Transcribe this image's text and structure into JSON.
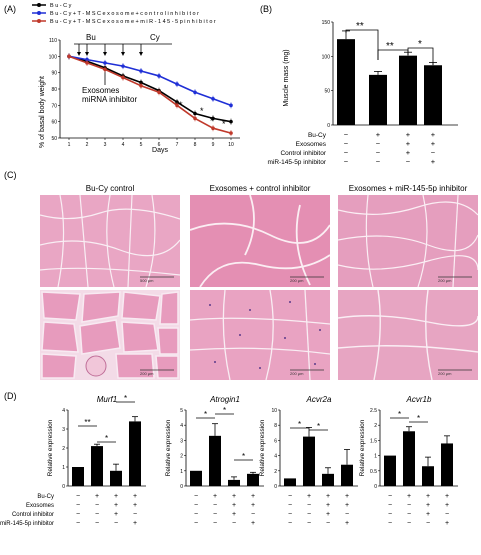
{
  "panels": {
    "A": {
      "label": "(A)",
      "legend": [
        {
          "name": "B u - C y",
          "color": "#000000"
        },
        {
          "name": "B u - C y + T - M S C  e x o s o m e + c o n t r o l  i n h i b i t o r",
          "color": "#1f2fd6"
        },
        {
          "name": "B u - C y + T - M S C  e x o s o m e + m i R - 1 4 5 - 5 p  i n h i b i t o r",
          "color": "#c0392b"
        }
      ],
      "bu_label": "Bu",
      "cy_label": "Cy",
      "exo_annotation_line1": "Exosomes",
      "exo_annotation_line2": "miRNA inhibitor",
      "ylabel": "% of basal body weight",
      "xlabel": "Days",
      "star": "*"
    },
    "B": {
      "label": "(B)",
      "ylabel": "Muscle mass (mg)",
      "sig1": "**",
      "sig2": "**",
      "sig3": "*"
    },
    "C": {
      "label": "(C)",
      "titles": [
        "Bu-Cy control",
        "Exosomes + control inhibitor",
        "Exosomes + miR-145-5p inhibitor"
      ],
      "scale_labels": [
        "500 μm",
        "200 μm",
        "200 μm",
        "200 μm",
        "200 μm",
        "200 μm"
      ]
    },
    "D": {
      "label": "(D)",
      "ylabel": "Relative expression",
      "genes": [
        "Murf1",
        "Atrogin1",
        "Acvr2a",
        "Acvr1b"
      ]
    }
  },
  "conditions": {
    "row_labels": [
      "Bu-Cy",
      "Exosomes",
      "Control inhibitor",
      "miR-145-5p inhibitor"
    ],
    "rows": [
      [
        "−",
        "+",
        "+",
        "+"
      ],
      [
        "−",
        "−",
        "+",
        "+"
      ],
      [
        "−",
        "−",
        "+",
        "−"
      ],
      [
        "−",
        "−",
        "−",
        "+"
      ]
    ]
  },
  "chart_data": [
    {
      "type": "line",
      "x": [
        1,
        2,
        3,
        4,
        5,
        6,
        7,
        8,
        9,
        10
      ],
      "xlim": [
        0.5,
        10.5
      ],
      "ylim": [
        50,
        110
      ],
      "yticks": [
        50,
        60,
        70,
        80,
        90,
        100,
        110
      ],
      "series": [
        {
          "name": "B u - C y",
          "color": "#000000",
          "values": [
            100,
            97,
            93,
            88,
            84,
            79,
            72,
            65,
            62,
            60
          ]
        },
        {
          "name": "B u - C y + T - M S C  e x o s o m e + c o n t r o l  i n h i b i t o r",
          "color": "#1f2fd6",
          "values": [
            100,
            98,
            96,
            94,
            91,
            88,
            83,
            78,
            74,
            70
          ]
        },
        {
          "name": "B u - C y + T - M S C  e x o s o m e + m i R - 1 4 5 - 5 p  i n h i b i t o r",
          "color": "#c0392b",
          "values": [
            100,
            96,
            92,
            87,
            82,
            78,
            70,
            62,
            56,
            53
          ]
        }
      ]
    },
    {
      "type": "bar",
      "ylim": [
        0,
        150
      ],
      "yticks": [
        0,
        50,
        100,
        150
      ],
      "values": [
        125,
        73,
        101,
        87
      ],
      "errors": [
        12,
        5,
        5,
        4
      ]
    },
    {
      "type": "bar",
      "title": "Murf1",
      "ylim": [
        0,
        4
      ],
      "yticks": [
        0,
        1,
        2,
        3,
        4
      ],
      "values": [
        1.0,
        2.1,
        0.8,
        3.4
      ],
      "errors": [
        0,
        0.1,
        0.35,
        0.25
      ]
    },
    {
      "type": "bar",
      "title": "Atrogin1",
      "ylim": [
        0,
        5
      ],
      "yticks": [
        0,
        1,
        2,
        3,
        4,
        5
      ],
      "values": [
        1.0,
        3.3,
        0.4,
        0.8
      ],
      "errors": [
        0,
        0.8,
        0.2,
        0.1
      ]
    },
    {
      "type": "bar",
      "title": "Acvr2a",
      "ylim": [
        0,
        10
      ],
      "yticks": [
        0,
        2,
        4,
        6,
        8,
        10
      ],
      "values": [
        1.0,
        6.5,
        1.6,
        2.8
      ],
      "errors": [
        0,
        1.2,
        0.8,
        2.0
      ]
    },
    {
      "type": "bar",
      "title": "Acvr1b",
      "ylim": [
        0,
        2.5
      ],
      "yticks": [
        0,
        0.5,
        1.0,
        1.5,
        2.0,
        2.5
      ],
      "values": [
        1.0,
        1.8,
        0.65,
        1.4
      ],
      "errors": [
        0,
        0.15,
        0.3,
        0.25
      ]
    }
  ]
}
